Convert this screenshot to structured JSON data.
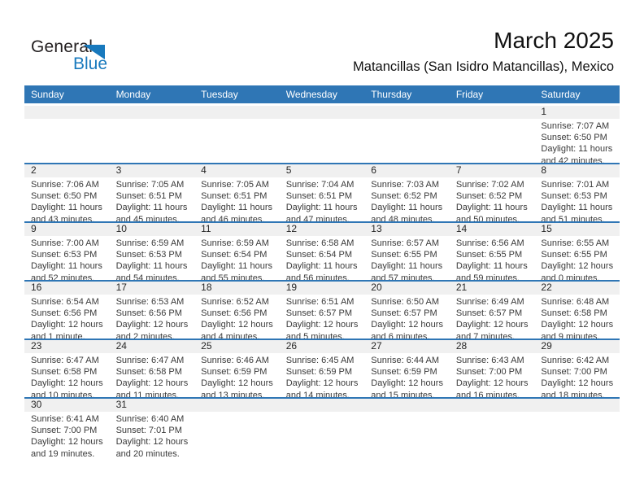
{
  "logo": {
    "text_black": "General",
    "text_blue": "Blue"
  },
  "title": "March 2025",
  "subtitle": "Matancillas (San Isidro Matancillas), Mexico",
  "weekdays": [
    "Sunday",
    "Monday",
    "Tuesday",
    "Wednesday",
    "Thursday",
    "Friday",
    "Saturday"
  ],
  "colors": {
    "header_bg": "#2F76B5",
    "week_divider": "#2F76B5",
    "day_band_bg": "#F0F0F0",
    "body_text": "#3A3A3A",
    "logo_blue": "#1879BD"
  },
  "weeks": [
    [
      null,
      null,
      null,
      null,
      null,
      null,
      {
        "day": "1",
        "sunrise": "Sunrise: 7:07 AM",
        "sunset": "Sunset: 6:50 PM",
        "daylight_line1": "Daylight: 11 hours",
        "daylight_line2": "and 42 minutes."
      }
    ],
    [
      {
        "day": "2",
        "sunrise": "Sunrise: 7:06 AM",
        "sunset": "Sunset: 6:50 PM",
        "daylight_line1": "Daylight: 11 hours",
        "daylight_line2": "and 43 minutes."
      },
      {
        "day": "3",
        "sunrise": "Sunrise: 7:05 AM",
        "sunset": "Sunset: 6:51 PM",
        "daylight_line1": "Daylight: 11 hours",
        "daylight_line2": "and 45 minutes."
      },
      {
        "day": "4",
        "sunrise": "Sunrise: 7:05 AM",
        "sunset": "Sunset: 6:51 PM",
        "daylight_line1": "Daylight: 11 hours",
        "daylight_line2": "and 46 minutes."
      },
      {
        "day": "5",
        "sunrise": "Sunrise: 7:04 AM",
        "sunset": "Sunset: 6:51 PM",
        "daylight_line1": "Daylight: 11 hours",
        "daylight_line2": "and 47 minutes."
      },
      {
        "day": "6",
        "sunrise": "Sunrise: 7:03 AM",
        "sunset": "Sunset: 6:52 PM",
        "daylight_line1": "Daylight: 11 hours",
        "daylight_line2": "and 48 minutes."
      },
      {
        "day": "7",
        "sunrise": "Sunrise: 7:02 AM",
        "sunset": "Sunset: 6:52 PM",
        "daylight_line1": "Daylight: 11 hours",
        "daylight_line2": "and 50 minutes."
      },
      {
        "day": "8",
        "sunrise": "Sunrise: 7:01 AM",
        "sunset": "Sunset: 6:53 PM",
        "daylight_line1": "Daylight: 11 hours",
        "daylight_line2": "and 51 minutes."
      }
    ],
    [
      {
        "day": "9",
        "sunrise": "Sunrise: 7:00 AM",
        "sunset": "Sunset: 6:53 PM",
        "daylight_line1": "Daylight: 11 hours",
        "daylight_line2": "and 52 minutes."
      },
      {
        "day": "10",
        "sunrise": "Sunrise: 6:59 AM",
        "sunset": "Sunset: 6:53 PM",
        "daylight_line1": "Daylight: 11 hours",
        "daylight_line2": "and 54 minutes."
      },
      {
        "day": "11",
        "sunrise": "Sunrise: 6:59 AM",
        "sunset": "Sunset: 6:54 PM",
        "daylight_line1": "Daylight: 11 hours",
        "daylight_line2": "and 55 minutes."
      },
      {
        "day": "12",
        "sunrise": "Sunrise: 6:58 AM",
        "sunset": "Sunset: 6:54 PM",
        "daylight_line1": "Daylight: 11 hours",
        "daylight_line2": "and 56 minutes."
      },
      {
        "day": "13",
        "sunrise": "Sunrise: 6:57 AM",
        "sunset": "Sunset: 6:55 PM",
        "daylight_line1": "Daylight: 11 hours",
        "daylight_line2": "and 57 minutes."
      },
      {
        "day": "14",
        "sunrise": "Sunrise: 6:56 AM",
        "sunset": "Sunset: 6:55 PM",
        "daylight_line1": "Daylight: 11 hours",
        "daylight_line2": "and 59 minutes."
      },
      {
        "day": "15",
        "sunrise": "Sunrise: 6:55 AM",
        "sunset": "Sunset: 6:55 PM",
        "daylight_line1": "Daylight: 12 hours",
        "daylight_line2": "and 0 minutes."
      }
    ],
    [
      {
        "day": "16",
        "sunrise": "Sunrise: 6:54 AM",
        "sunset": "Sunset: 6:56 PM",
        "daylight_line1": "Daylight: 12 hours",
        "daylight_line2": "and 1 minute."
      },
      {
        "day": "17",
        "sunrise": "Sunrise: 6:53 AM",
        "sunset": "Sunset: 6:56 PM",
        "daylight_line1": "Daylight: 12 hours",
        "daylight_line2": "and 2 minutes."
      },
      {
        "day": "18",
        "sunrise": "Sunrise: 6:52 AM",
        "sunset": "Sunset: 6:56 PM",
        "daylight_line1": "Daylight: 12 hours",
        "daylight_line2": "and 4 minutes."
      },
      {
        "day": "19",
        "sunrise": "Sunrise: 6:51 AM",
        "sunset": "Sunset: 6:57 PM",
        "daylight_line1": "Daylight: 12 hours",
        "daylight_line2": "and 5 minutes."
      },
      {
        "day": "20",
        "sunrise": "Sunrise: 6:50 AM",
        "sunset": "Sunset: 6:57 PM",
        "daylight_line1": "Daylight: 12 hours",
        "daylight_line2": "and 6 minutes."
      },
      {
        "day": "21",
        "sunrise": "Sunrise: 6:49 AM",
        "sunset": "Sunset: 6:57 PM",
        "daylight_line1": "Daylight: 12 hours",
        "daylight_line2": "and 7 minutes."
      },
      {
        "day": "22",
        "sunrise": "Sunrise: 6:48 AM",
        "sunset": "Sunset: 6:58 PM",
        "daylight_line1": "Daylight: 12 hours",
        "daylight_line2": "and 9 minutes."
      }
    ],
    [
      {
        "day": "23",
        "sunrise": "Sunrise: 6:47 AM",
        "sunset": "Sunset: 6:58 PM",
        "daylight_line1": "Daylight: 12 hours",
        "daylight_line2": "and 10 minutes."
      },
      {
        "day": "24",
        "sunrise": "Sunrise: 6:47 AM",
        "sunset": "Sunset: 6:58 PM",
        "daylight_line1": "Daylight: 12 hours",
        "daylight_line2": "and 11 minutes."
      },
      {
        "day": "25",
        "sunrise": "Sunrise: 6:46 AM",
        "sunset": "Sunset: 6:59 PM",
        "daylight_line1": "Daylight: 12 hours",
        "daylight_line2": "and 13 minutes."
      },
      {
        "day": "26",
        "sunrise": "Sunrise: 6:45 AM",
        "sunset": "Sunset: 6:59 PM",
        "daylight_line1": "Daylight: 12 hours",
        "daylight_line2": "and 14 minutes."
      },
      {
        "day": "27",
        "sunrise": "Sunrise: 6:44 AM",
        "sunset": "Sunset: 6:59 PM",
        "daylight_line1": "Daylight: 12 hours",
        "daylight_line2": "and 15 minutes."
      },
      {
        "day": "28",
        "sunrise": "Sunrise: 6:43 AM",
        "sunset": "Sunset: 7:00 PM",
        "daylight_line1": "Daylight: 12 hours",
        "daylight_line2": "and 16 minutes."
      },
      {
        "day": "29",
        "sunrise": "Sunrise: 6:42 AM",
        "sunset": "Sunset: 7:00 PM",
        "daylight_line1": "Daylight: 12 hours",
        "daylight_line2": "and 18 minutes."
      }
    ],
    [
      {
        "day": "30",
        "sunrise": "Sunrise: 6:41 AM",
        "sunset": "Sunset: 7:00 PM",
        "daylight_line1": "Daylight: 12 hours",
        "daylight_line2": "and 19 minutes."
      },
      {
        "day": "31",
        "sunrise": "Sunrise: 6:40 AM",
        "sunset": "Sunset: 7:01 PM",
        "daylight_line1": "Daylight: 12 hours",
        "daylight_line2": "and 20 minutes."
      },
      null,
      null,
      null,
      null,
      null
    ]
  ]
}
